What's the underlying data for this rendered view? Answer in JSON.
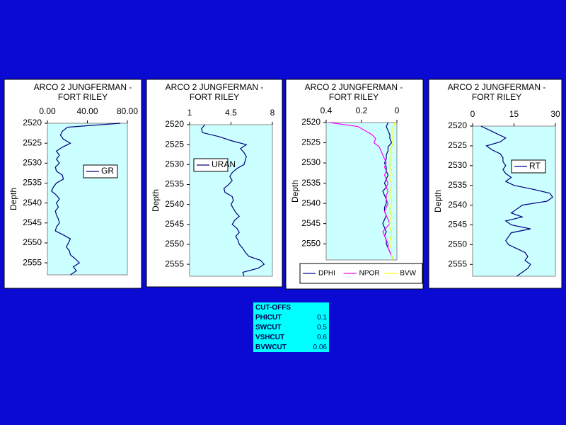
{
  "chart_data": [
    {
      "type": "line",
      "title": [
        "ARCO  2 JUNGFERMAN -",
        "FORT RILEY"
      ],
      "ylabel": "Depth",
      "legend": "right",
      "xlim": [
        0,
        80
      ],
      "xticks": [
        {
          "value": 0,
          "label": "0.00"
        },
        {
          "value": 40,
          "label": "40.00"
        },
        {
          "value": 80,
          "label": "80.00"
        }
      ],
      "ylim": [
        2520,
        2558
      ],
      "yticks": [
        2520,
        2525,
        2530,
        2535,
        2540,
        2545,
        2550,
        2555
      ],
      "depth": [
        2520,
        2521,
        2522,
        2523,
        2524,
        2525,
        2526,
        2527,
        2528,
        2529,
        2530,
        2531,
        2532,
        2533,
        2534,
        2535,
        2536,
        2537,
        2538,
        2539,
        2540,
        2541,
        2542,
        2543,
        2544,
        2545,
        2546,
        2547,
        2548,
        2549,
        2550,
        2551,
        2552,
        2553,
        2554,
        2555,
        2556,
        2557,
        2558
      ],
      "series": [
        {
          "name": "GR",
          "color": "#000080",
          "values": [
            73,
            20,
            15,
            13,
            16,
            23,
            15,
            9,
            12,
            9,
            12,
            8,
            9,
            15,
            16,
            9,
            6,
            4,
            9,
            12,
            9,
            11,
            8,
            9,
            11,
            12,
            9,
            8,
            16,
            23,
            21,
            19,
            22,
            23,
            28,
            32,
            26,
            29,
            23
          ]
        }
      ]
    },
    {
      "type": "line",
      "title": [
        "ARCO  2 JUNGFERMAN -",
        "FORT RILEY"
      ],
      "ylabel": "Depth",
      "legend": "upper left",
      "xlim": [
        1,
        8
      ],
      "xticks": [
        1,
        4.5,
        8
      ],
      "ylim": [
        2520,
        2558
      ],
      "yticks": [
        2520,
        2525,
        2530,
        2535,
        2540,
        2545,
        2550,
        2555
      ],
      "depth": [
        2520,
        2521,
        2522,
        2523,
        2524,
        2525,
        2526,
        2527,
        2528,
        2529,
        2530,
        2531,
        2532,
        2533,
        2534,
        2535,
        2536,
        2537,
        2538,
        2539,
        2540,
        2541,
        2542,
        2543,
        2544,
        2545,
        2546,
        2547,
        2548,
        2549,
        2550,
        2551,
        2552,
        2553,
        2554,
        2555,
        2556,
        2557,
        2558
      ],
      "series": [
        {
          "name": "URAN",
          "color": "#000080",
          "values": [
            2.3,
            2.0,
            2.1,
            3.5,
            4.5,
            5.8,
            5.3,
            5.6,
            5.8,
            5.7,
            5.6,
            5.0,
            4.6,
            4.4,
            4.6,
            4.3,
            3.9,
            4.0,
            4.6,
            4.7,
            4.5,
            4.7,
            4.9,
            5.2,
            4.8,
            4.6,
            5.0,
            5.2,
            4.9,
            5.1,
            5.2,
            5.5,
            5.7,
            6.0,
            7.0,
            7.3,
            6.8,
            5.5,
            5.6
          ]
        }
      ]
    },
    {
      "type": "line",
      "title": [
        "ARCO  2 JUNGFERMAN -",
        "FORT RILEY"
      ],
      "ylabel": "Depth",
      "legend": "bottom",
      "xlim": [
        0.4,
        0
      ],
      "xticks": [
        0.4,
        0.2,
        0
      ],
      "ylim": [
        2520,
        2554
      ],
      "yticks": [
        2520,
        2525,
        2530,
        2535,
        2540,
        2545,
        2550
      ],
      "depth": [
        2520,
        2521,
        2522,
        2523,
        2524,
        2525,
        2526,
        2527,
        2528,
        2529,
        2530,
        2531,
        2532,
        2533,
        2534,
        2535,
        2536,
        2537,
        2538,
        2539,
        2540,
        2541,
        2542,
        2543,
        2544,
        2545,
        2546,
        2547,
        2548,
        2549,
        2550,
        2551,
        2552,
        2553,
        2554
      ],
      "series": [
        {
          "name": "DPHI",
          "color": "#000080",
          "values": [
            0.05,
            0.06,
            0.05,
            0.04,
            0.04,
            0.03,
            0.05,
            0.05,
            0.06,
            0.06,
            0.07,
            0.06,
            0.06,
            0.05,
            0.06,
            0.07,
            0.06,
            0.08,
            0.07,
            0.06,
            0.06,
            0.07,
            0.07,
            0.06,
            0.07,
            0.08,
            0.07,
            0.06,
            0.07,
            0.06,
            0.06,
            0.05,
            0.04,
            0.03,
            0.02
          ]
        },
        {
          "name": "NPOR",
          "color": "#ff00ff",
          "values": [
            0.38,
            0.22,
            0.18,
            0.14,
            0.12,
            0.13,
            0.1,
            0.09,
            0.08,
            0.07,
            0.06,
            0.07,
            0.06,
            0.07,
            0.06,
            0.05,
            0.06,
            0.05,
            0.06,
            0.06,
            0.05,
            0.06,
            0.07,
            0.06,
            0.05,
            0.04,
            0.06,
            0.08,
            0.07,
            0.06,
            0.05,
            0.05,
            0.04,
            0.03,
            0.02
          ]
        },
        {
          "name": "BVW",
          "color": "#ffff00",
          "values": [
            0.01,
            0.02,
            0.03,
            0.02,
            0.03,
            0.02,
            0.03,
            0.04,
            0.03,
            0.04,
            0.04,
            0.04,
            0.03,
            0.04,
            0.04,
            0.03,
            0.03,
            0.04,
            0.04,
            0.03,
            0.03,
            0.04,
            0.04,
            0.03,
            0.04,
            0.04,
            0.04,
            0.03,
            0.03,
            0.04,
            0.04,
            0.03,
            0.03,
            0.03,
            0.02
          ]
        }
      ]
    },
    {
      "type": "line",
      "title": [
        "ARCO  2 JUNGFERMAN -",
        "FORT RILEY"
      ],
      "ylabel": "Depth",
      "legend": "upper right",
      "xlim": [
        0,
        30
      ],
      "xticks": [
        0,
        15,
        30
      ],
      "ylim": [
        2520,
        2558
      ],
      "yticks": [
        2520,
        2525,
        2530,
        2535,
        2540,
        2545,
        2550,
        2555
      ],
      "depth": [
        2520,
        2521,
        2522,
        2523,
        2524,
        2525,
        2526,
        2527,
        2528,
        2529,
        2530,
        2531,
        2532,
        2533,
        2534,
        2535,
        2536,
        2537,
        2538,
        2539,
        2540,
        2541,
        2542,
        2543,
        2544,
        2545,
        2546,
        2547,
        2548,
        2549,
        2550,
        2551,
        2552,
        2553,
        2554,
        2555,
        2556,
        2557,
        2558
      ],
      "series": [
        {
          "name": "RT",
          "color": "#000080",
          "values": [
            3,
            6,
            9,
            12,
            10,
            5,
            7,
            10,
            11,
            11,
            12,
            11,
            12,
            14,
            12,
            15,
            22,
            28,
            29,
            27,
            18,
            16,
            14,
            18,
            12,
            14,
            21,
            14,
            13,
            12,
            13,
            16,
            19,
            20,
            19,
            21,
            20,
            18,
            16
          ]
        }
      ]
    }
  ],
  "table": {
    "title": "CUT-OFFS",
    "rows": [
      [
        "PHICUT",
        0.1
      ],
      [
        "SWCUT",
        0.5
      ],
      [
        "VSHCUT",
        0.6
      ],
      [
        "BVWCUT",
        0.06
      ]
    ]
  }
}
